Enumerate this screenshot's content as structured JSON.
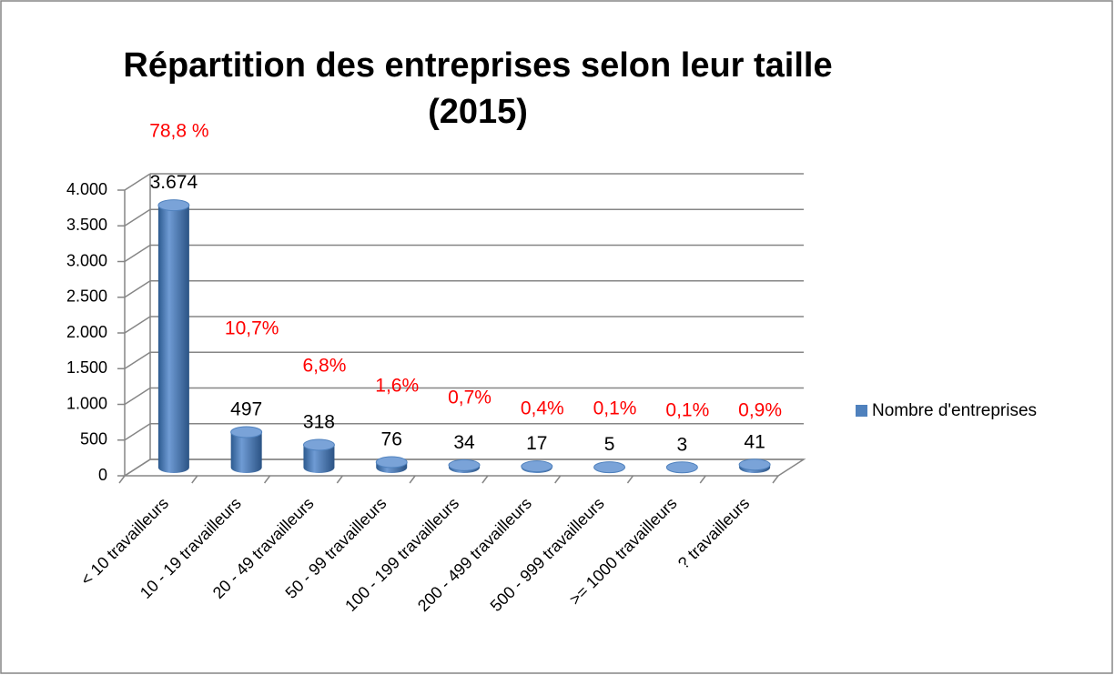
{
  "chart_data": {
    "type": "bar3d",
    "title": [
      "Répartition des entreprises selon leur taille",
      "(2015)"
    ],
    "categories": [
      "< 10 travailleurs",
      "10 - 19 travailleurs",
      "20 - 49 travailleurs",
      "50 - 99 travailleurs",
      "100 - 199 travailleurs",
      "200 - 499 travailleurs",
      "500 - 999 travailleurs",
      ">= 1000 travailleurs",
      "? travailleurs"
    ],
    "series": [
      {
        "name": "Nombre d'entreprises",
        "color": "#4f81bd",
        "values": [
          3674,
          497,
          318,
          76,
          34,
          17,
          5,
          3,
          41
        ],
        "value_labels": [
          "3.674",
          "497",
          "318",
          "76",
          "34",
          "17",
          "5",
          "3",
          "41"
        ]
      }
    ],
    "annotations": [
      "78,8 %",
      "10,7%",
      "6,8%",
      "1,6%",
      "0,7%",
      "0,4%",
      "0,1%",
      "0,1%",
      "0,9%"
    ],
    "annotation_color": "#ff0000",
    "ylim": [
      0,
      4000
    ],
    "yticks": [
      0,
      500,
      {
        "value": 1000,
        "label": "1.000"
      },
      {
        "value": 1500,
        "label": "1.500"
      },
      {
        "value": 2000,
        "label": "2.000"
      },
      {
        "value": 2500,
        "label": "2.500"
      },
      {
        "value": 3000,
        "label": "3.000"
      },
      {
        "value": 3500,
        "label": "3.500"
      },
      {
        "value": 4000,
        "label": "4.000"
      }
    ],
    "grid": true,
    "legend": "right"
  }
}
